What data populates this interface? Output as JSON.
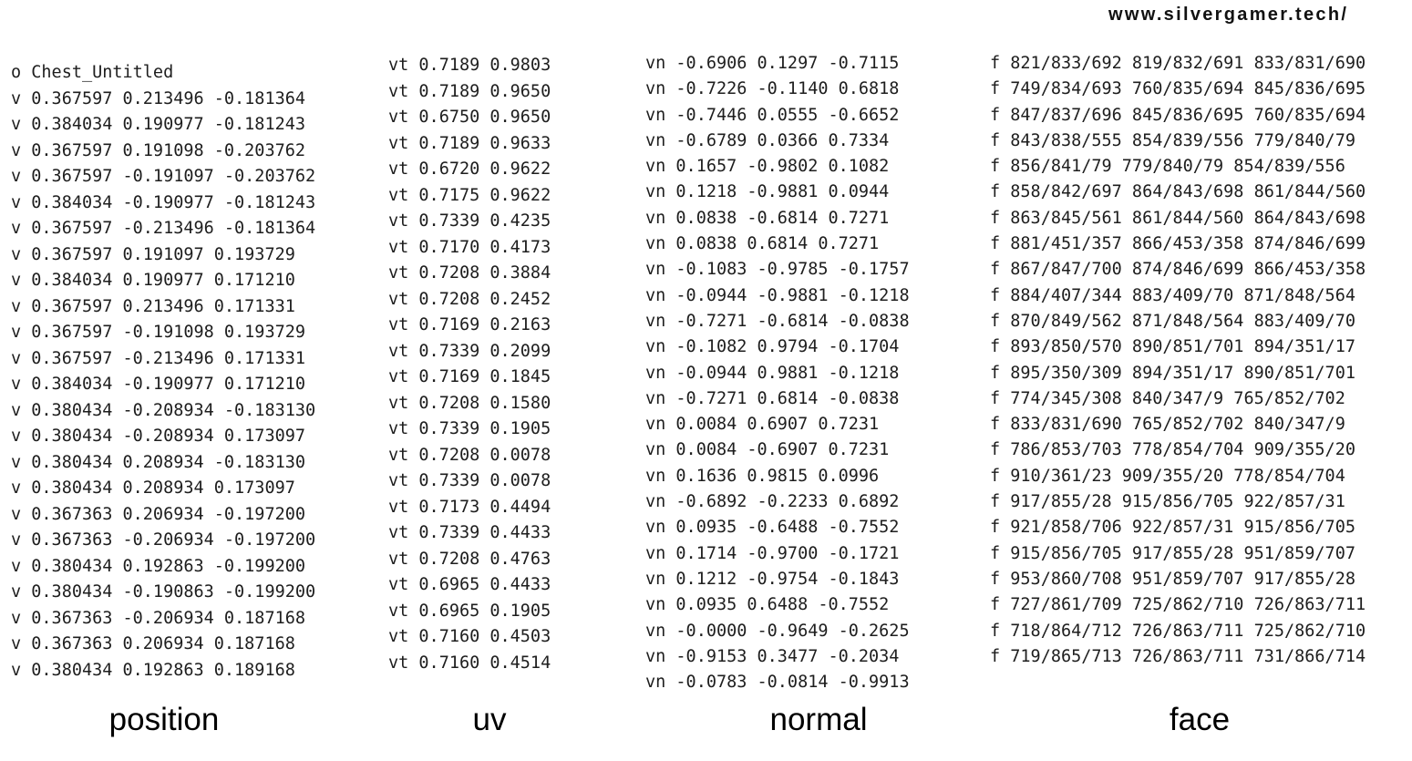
{
  "watermark": "www.silvergamer.tech/",
  "columns": {
    "position": [
      "o Chest_Untitled",
      "v 0.367597 0.213496 -0.181364",
      "v 0.384034 0.190977 -0.181243",
      "v 0.367597 0.191098 -0.203762",
      "v 0.367597 -0.191097 -0.203762",
      "v 0.384034 -0.190977 -0.181243",
      "v 0.367597 -0.213496 -0.181364",
      "v 0.367597 0.191097 0.193729",
      "v 0.384034 0.190977 0.171210",
      "v 0.367597 0.213496 0.171331",
      "v 0.367597 -0.191098 0.193729",
      "v 0.367597 -0.213496 0.171331",
      "v 0.384034 -0.190977 0.171210",
      "v 0.380434 -0.208934 -0.183130",
      "v 0.380434 -0.208934 0.173097",
      "v 0.380434 0.208934 -0.183130",
      "v 0.380434 0.208934 0.173097",
      "v 0.367363 0.206934 -0.197200",
      "v 0.367363 -0.206934 -0.197200",
      "v 0.380434 0.192863 -0.199200",
      "v 0.380434 -0.190863 -0.199200",
      "v 0.367363 -0.206934 0.187168",
      "v 0.367363 0.206934 0.187168",
      "v 0.380434 0.192863 0.189168"
    ],
    "uv": [
      "vt 0.7189 0.9803",
      "vt 0.7189 0.9650",
      "vt 0.6750 0.9650",
      "vt 0.7189 0.9633",
      "vt 0.6720 0.9622",
      "vt 0.7175 0.9622",
      "vt 0.7339 0.4235",
      "vt 0.7170 0.4173",
      "vt 0.7208 0.3884",
      "vt 0.7208 0.2452",
      "vt 0.7169 0.2163",
      "vt 0.7339 0.2099",
      "vt 0.7169 0.1845",
      "vt 0.7208 0.1580",
      "vt 0.7339 0.1905",
      "vt 0.7208 0.0078",
      "vt 0.7339 0.0078",
      "vt 0.7173 0.4494",
      "vt 0.7339 0.4433",
      "vt 0.7208 0.4763",
      "vt 0.6965 0.4433",
      "vt 0.6965 0.1905",
      "vt 0.7160 0.4503",
      "vt 0.7160 0.4514"
    ],
    "normal": [
      "vn -0.6906 0.1297 -0.7115",
      "vn -0.7226 -0.1140 0.6818",
      "vn -0.7446 0.0555 -0.6652",
      "vn -0.6789 0.0366 0.7334",
      "vn 0.1657 -0.9802 0.1082",
      "vn 0.1218 -0.9881 0.0944",
      "vn 0.0838 -0.6814 0.7271",
      "vn 0.0838 0.6814 0.7271",
      "vn -0.1083 -0.9785 -0.1757",
      "vn -0.0944 -0.9881 -0.1218",
      "vn -0.7271 -0.6814 -0.0838",
      "vn -0.1082 0.9794 -0.1704",
      "vn -0.0944 0.9881 -0.1218",
      "vn -0.7271 0.6814 -0.0838",
      "vn 0.0084 0.6907 0.7231",
      "vn 0.0084 -0.6907 0.7231",
      "vn 0.1636 0.9815 0.0996",
      "vn -0.6892 -0.2233 0.6892",
      "vn 0.0935 -0.6488 -0.7552",
      "vn 0.1714 -0.9700 -0.1721",
      "vn 0.1212 -0.9754 -0.1843",
      "vn 0.0935 0.6488 -0.7552",
      "vn -0.0000 -0.9649 -0.2625",
      "vn -0.9153 0.3477 -0.2034",
      "vn -0.0783 -0.0814 -0.9913"
    ],
    "face": [
      "f 821/833/692 819/832/691 833/831/690",
      "f 749/834/693 760/835/694 845/836/695",
      "f 847/837/696 845/836/695 760/835/694",
      "f 843/838/555 854/839/556 779/840/79",
      "f 856/841/79 779/840/79 854/839/556",
      "f 858/842/697 864/843/698 861/844/560",
      "f 863/845/561 861/844/560 864/843/698",
      "f 881/451/357 866/453/358 874/846/699",
      "f 867/847/700 874/846/699 866/453/358",
      "f 884/407/344 883/409/70 871/848/564",
      "f 870/849/562 871/848/564 883/409/70",
      "f 893/850/570 890/851/701 894/351/17",
      "f 895/350/309 894/351/17 890/851/701",
      "f 774/345/308 840/347/9 765/852/702",
      "f 833/831/690 765/852/702 840/347/9",
      "f 786/853/703 778/854/704 909/355/20",
      "f 910/361/23 909/355/20 778/854/704",
      "f 917/855/28 915/856/705 922/857/31",
      "f 921/858/706 922/857/31 915/856/705",
      "f 915/856/705 917/855/28 951/859/707",
      "f 953/860/708 951/859/707 917/855/28",
      "f 727/861/709 725/862/710 726/863/711",
      "f 718/864/712 726/863/711 725/862/710",
      "f 719/865/713 726/863/711 731/866/714"
    ]
  },
  "captions": {
    "position": "position",
    "uv": "uv",
    "normal": "normal",
    "face": "face"
  }
}
